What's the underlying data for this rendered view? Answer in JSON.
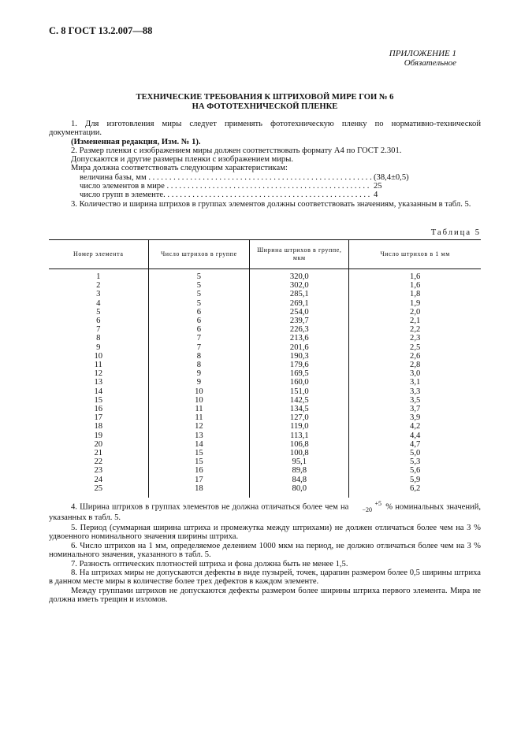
{
  "header": "С. 8 ГОСТ 13.2.007—88",
  "appendix": {
    "title": "ПРИЛОЖЕНИЕ 1",
    "subtitle": "Обязательное"
  },
  "title": {
    "line1": "ТЕХНИЧЕСКИЕ ТРЕБОВАНИЯ К ШТРИХОВОЙ МИРЕ ГОИ № 6",
    "line2": "НА ФОТОТЕХНИЧЕСКОЙ ПЛЕНКЕ"
  },
  "paragraphs": {
    "p1": "1. Для изготовления миры следует применять фототехническую пленку по нормативно-технической документации.",
    "p1_note": "(Измененная редакция, Изм. № 1).",
    "p2": "2. Размер пленки с изображением миры должен соответствовать формату А4 по ГОСТ 2.301.",
    "p2b": "Допускаются и другие размеры пленки с изображением миры.",
    "p2c": "Мира должна соответствовать следующим характеристикам:",
    "p3": "3. Количество и ширина штрихов в группах элементов должны соответствовать значениям, указанным в табл. 5.",
    "p4_a": "4. Ширина штрихов в группах элементов не должна отличаться более чем на",
    "p4_sup": "+5",
    "p4_sub": "−20",
    "p4_b": "% номинальных значений, указанных в табл. 5.",
    "p5": "5. Период (суммарная ширина штриха и промежутка между штрихами) не должен отличаться более чем на 3 % удвоенного номинального значения ширины штриха.",
    "p6": "6. Число штрихов на 1 мм, определяемое делением 1000 мкм на период, не должно отличаться более чем на 3 % номинального значения, указанного в табл. 5.",
    "p7": "7. Разность оптических плотностей штриха и фона должна быть не менее 1,5.",
    "p8": "8. На штрихах миры не допускаются дефекты в виде пузырей, точек, царапин размером более 0,5 ширины штриха в данном месте миры в количестве более трех дефектов в каждом элементе.",
    "p8b": "Между группами штрихов не допускаются дефекты размером более ширины штриха первого элемента. Мира не должна иметь трещин и изломов."
  },
  "characteristics": [
    {
      "label": "величина базы, мм . . . . . . . . . . . . . . . . . . . . . . . . . . . . . . . . . . . . . . . . . . . . . . . . . . . . . . . .",
      "value": "(38,4±0,5)"
    },
    {
      "label": "число элементов в мире . . . . . . . . . . . . . . . . . . . . . . . . . . . . . . . . . . . . . . . . . . . . . . . . . . . . . . . .",
      "value": "25"
    },
    {
      "label": "число групп в элементе. . . . . . . . . . . . . . . . . . . . . . . . . . . . . . . . . . . . . . . . . . . . . . . . . . . . . . . .",
      "value": "4"
    }
  ],
  "table": {
    "caption": "Таблица 5",
    "headers": [
      "Номер элемента",
      "Число штрихов в группе",
      "Ширина штрихов в группе, мкм",
      "Число штрихов в 1 мм"
    ],
    "rows": [
      [
        "1",
        "5",
        "320,0",
        "1,6"
      ],
      [
        "2",
        "5",
        "302,0",
        "1,6"
      ],
      [
        "3",
        "5",
        "285,1",
        "1,8"
      ],
      [
        "4",
        "5",
        "269,1",
        "1,9"
      ],
      [
        "5",
        "6",
        "254,0",
        "2,0"
      ],
      [
        "6",
        "6",
        "239,7",
        "2,1"
      ],
      [
        "7",
        "6",
        "226,3",
        "2,2"
      ],
      [
        "8",
        "7",
        "213,6",
        "2,3"
      ],
      [
        "9",
        "7",
        "201,6",
        "2,5"
      ],
      [
        "10",
        "8",
        "190,3",
        "2,6"
      ],
      [
        "11",
        "8",
        "179,6",
        "2,8"
      ],
      [
        "12",
        "9",
        "169,5",
        "3,0"
      ],
      [
        "13",
        "9",
        "160,0",
        "3,1"
      ],
      [
        "14",
        "10",
        "151,0",
        "3,3"
      ],
      [
        "15",
        "10",
        "142,5",
        "3,5"
      ],
      [
        "16",
        "11",
        "134,5",
        "3,7"
      ],
      [
        "17",
        "11",
        "127,0",
        "3,9"
      ],
      [
        "18",
        "12",
        "119,0",
        "4,2"
      ],
      [
        "19",
        "13",
        "113,1",
        "4,4"
      ],
      [
        "20",
        "14",
        "106,8",
        "4,7"
      ],
      [
        "21",
        "15",
        "100,8",
        "5,0"
      ],
      [
        "22",
        "15",
        "95,1",
        "5,3"
      ],
      [
        "23",
        "16",
        "89,8",
        "5,6"
      ],
      [
        "24",
        "17",
        "84,8",
        "5,9"
      ],
      [
        "25",
        "18",
        "80,0",
        "6,2"
      ]
    ]
  }
}
